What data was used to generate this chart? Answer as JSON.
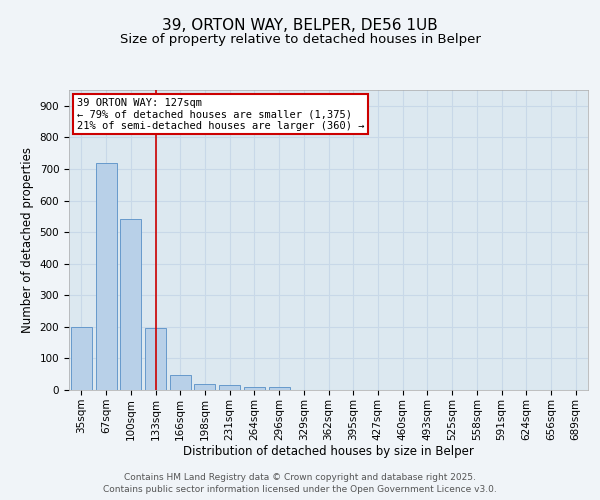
{
  "title_line1": "39, ORTON WAY, BELPER, DE56 1UB",
  "title_line2": "Size of property relative to detached houses in Belper",
  "xlabel": "Distribution of detached houses by size in Belper",
  "ylabel": "Number of detached properties",
  "categories": [
    "35sqm",
    "67sqm",
    "100sqm",
    "133sqm",
    "166sqm",
    "198sqm",
    "231sqm",
    "264sqm",
    "296sqm",
    "329sqm",
    "362sqm",
    "395sqm",
    "427sqm",
    "460sqm",
    "493sqm",
    "525sqm",
    "558sqm",
    "591sqm",
    "624sqm",
    "656sqm",
    "689sqm"
  ],
  "values": [
    200,
    720,
    540,
    195,
    47,
    20,
    15,
    10,
    8,
    0,
    0,
    0,
    0,
    0,
    0,
    0,
    0,
    0,
    0,
    0,
    0
  ],
  "bar_color": "#b8d0e8",
  "bar_edge_color": "#6699cc",
  "red_line_x": 3.0,
  "annotation_text_line1": "39 ORTON WAY: 127sqm",
  "annotation_text_line2": "← 79% of detached houses are smaller (1,375)",
  "annotation_text_line3": "21% of semi-detached houses are larger (360) →",
  "annotation_box_facecolor": "#ffffff",
  "annotation_box_edgecolor": "#cc0000",
  "ylim": [
    0,
    950
  ],
  "yticks": [
    0,
    100,
    200,
    300,
    400,
    500,
    600,
    700,
    800,
    900
  ],
  "grid_color": "#c8d8e8",
  "plot_bg_color": "#dce8f0",
  "fig_bg_color": "#f0f4f8",
  "footer_line1": "Contains HM Land Registry data © Crown copyright and database right 2025.",
  "footer_line2": "Contains public sector information licensed under the Open Government Licence v3.0.",
  "title_fontsize": 11,
  "subtitle_fontsize": 9.5,
  "axis_label_fontsize": 8.5,
  "tick_fontsize": 7.5,
  "annotation_fontsize": 7.5,
  "footer_fontsize": 6.5
}
